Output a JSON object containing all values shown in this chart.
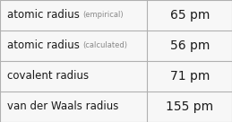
{
  "rows": [
    {
      "label": "atomic radius",
      "sublabel": "(empirical)",
      "value": "65 pm"
    },
    {
      "label": "atomic radius",
      "sublabel": "(calculated)",
      "value": "56 pm"
    },
    {
      "label": "covalent radius",
      "sublabel": "",
      "value": "71 pm"
    },
    {
      "label": "van der Waals radius",
      "sublabel": "",
      "value": "155 pm"
    }
  ],
  "bg_color": "#f7f7f7",
  "border_color": "#b0b0b0",
  "text_color": "#1a1a1a",
  "sublabel_color": "#888888",
  "divider_color": "#b0b0b0",
  "col_split": 0.635,
  "label_fontsize": 8.5,
  "sublabel_fontsize": 6.0,
  "value_fontsize": 10.0
}
